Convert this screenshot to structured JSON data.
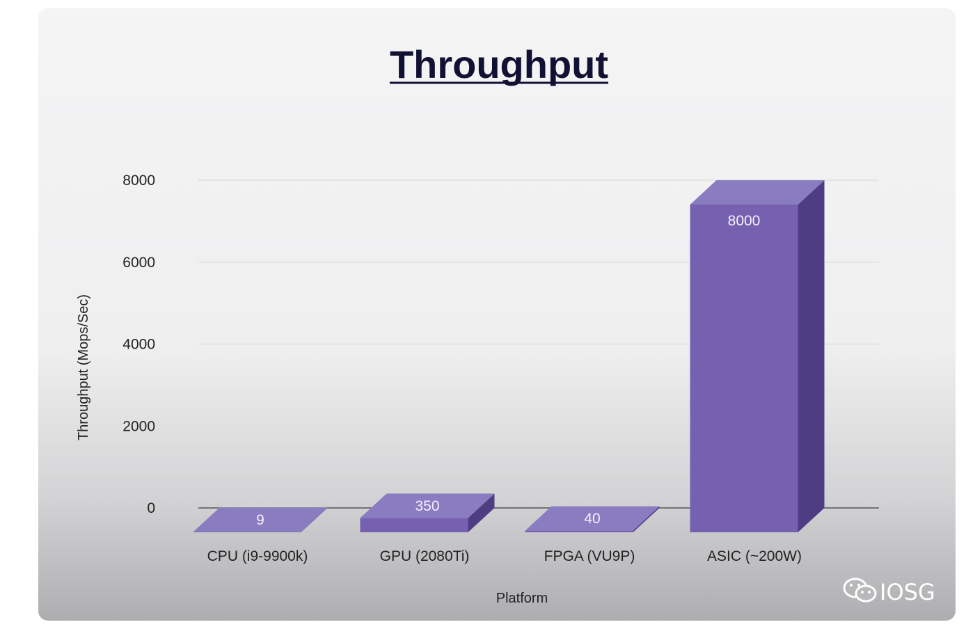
{
  "chart_data": {
    "type": "bar",
    "title": "Throughput",
    "xlabel": "Platform",
    "ylabel": "Throughput (Mops/Sec)",
    "categories": [
      "CPU (i9-9900k)",
      "GPU (2080Ti)",
      "FPGA (VU9P)",
      "ASIC (~200W)"
    ],
    "values": [
      9,
      350,
      40,
      8000
    ],
    "data_labels": [
      "9",
      "350",
      "40",
      "8000"
    ],
    "ylim": [
      0,
      8000
    ],
    "yticks": [
      "0",
      "2000",
      "4000",
      "6000",
      "8000"
    ],
    "grid": true,
    "style": "3d",
    "colors": {
      "bar_front": "#7561b0",
      "bar_top": "#8a7cc0",
      "bar_side": "#4f3d84",
      "grid": "#dcdce0",
      "baseline": "#555555"
    }
  },
  "watermark": {
    "text": "IOSG",
    "icon": "wechat-icon"
  }
}
